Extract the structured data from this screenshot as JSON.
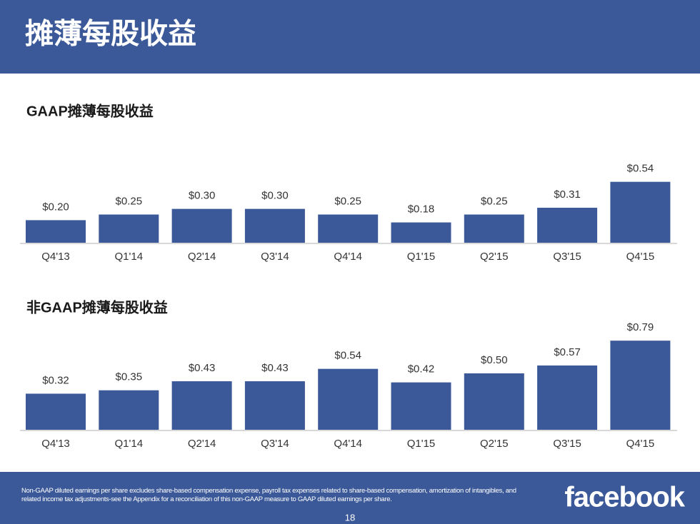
{
  "title": "摊薄每股收益",
  "chart_data": [
    {
      "type": "bar",
      "title": "GAAP摊薄每股收益",
      "categories": [
        "Q4'13",
        "Q1'14",
        "Q2'14",
        "Q3'14",
        "Q4'14",
        "Q1'15",
        "Q2'15",
        "Q3'15",
        "Q4'15"
      ],
      "values": [
        0.2,
        0.25,
        0.3,
        0.3,
        0.25,
        0.18,
        0.25,
        0.31,
        0.54
      ],
      "value_labels": [
        "$0.20",
        "$0.25",
        "$0.30",
        "$0.30",
        "$0.25",
        "$0.18",
        "$0.25",
        "$0.31",
        "$0.54"
      ],
      "color": "#3b5998"
    },
    {
      "type": "bar",
      "title": "非GAAP摊薄每股收益",
      "categories": [
        "Q4'13",
        "Q1'14",
        "Q2'14",
        "Q3'14",
        "Q4'14",
        "Q1'15",
        "Q2'15",
        "Q3'15",
        "Q4'15"
      ],
      "values": [
        0.32,
        0.35,
        0.43,
        0.43,
        0.54,
        0.42,
        0.5,
        0.57,
        0.79
      ],
      "value_labels": [
        "$0.32",
        "$0.35",
        "$0.43",
        "$0.43",
        "$0.54",
        "$0.42",
        "$0.50",
        "$0.57",
        "$0.79"
      ],
      "color": "#3b5998"
    }
  ],
  "footnote": "Non-GAAP diluted earnings per share excludes share-based compensation expense, payroll tax expenses related to share-based compensation, amortization of intangibles, and related income tax adjustments-see the Appendix for a reconciliation of this non-GAAP measure to GAAP diluted earnings per share.",
  "page_number": "18",
  "logo": "facebook"
}
